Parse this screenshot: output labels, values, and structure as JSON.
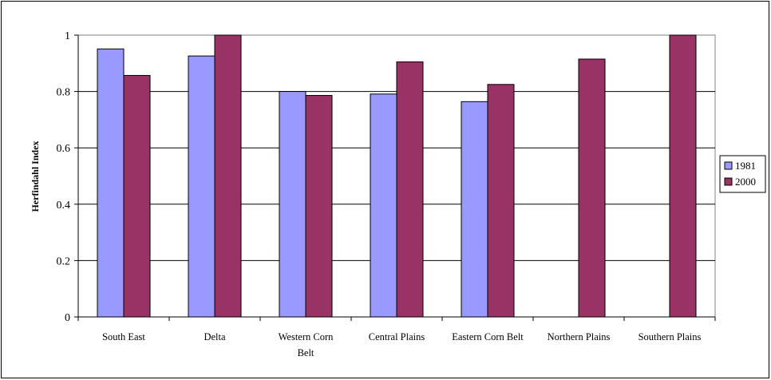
{
  "chart_data": {
    "type": "bar",
    "title": "",
    "xlabel": "",
    "ylabel": "Herfindahl Index",
    "ylim": [
      0,
      1
    ],
    "yticks": [
      "0",
      "0.2",
      "0.4",
      "0.6",
      "0.8",
      "1"
    ],
    "grid": true,
    "legend": "right",
    "categories": [
      [
        "South East"
      ],
      [
        "Delta"
      ],
      [
        "Western Corn",
        "Belt"
      ],
      [
        "Central Plains"
      ],
      [
        "Eastern Corn Belt"
      ],
      [
        "Northern Plains"
      ],
      [
        "Southern Plains"
      ]
    ],
    "series": [
      {
        "name": "1981",
        "color": "#9999ff",
        "values": [
          0.951,
          0.926,
          0.8,
          0.791,
          0.764,
          null,
          null
        ]
      },
      {
        "name": "2000",
        "color": "#993366",
        "values": [
          0.857,
          1.0,
          0.786,
          0.905,
          0.825,
          0.915,
          1.0
        ]
      }
    ]
  }
}
